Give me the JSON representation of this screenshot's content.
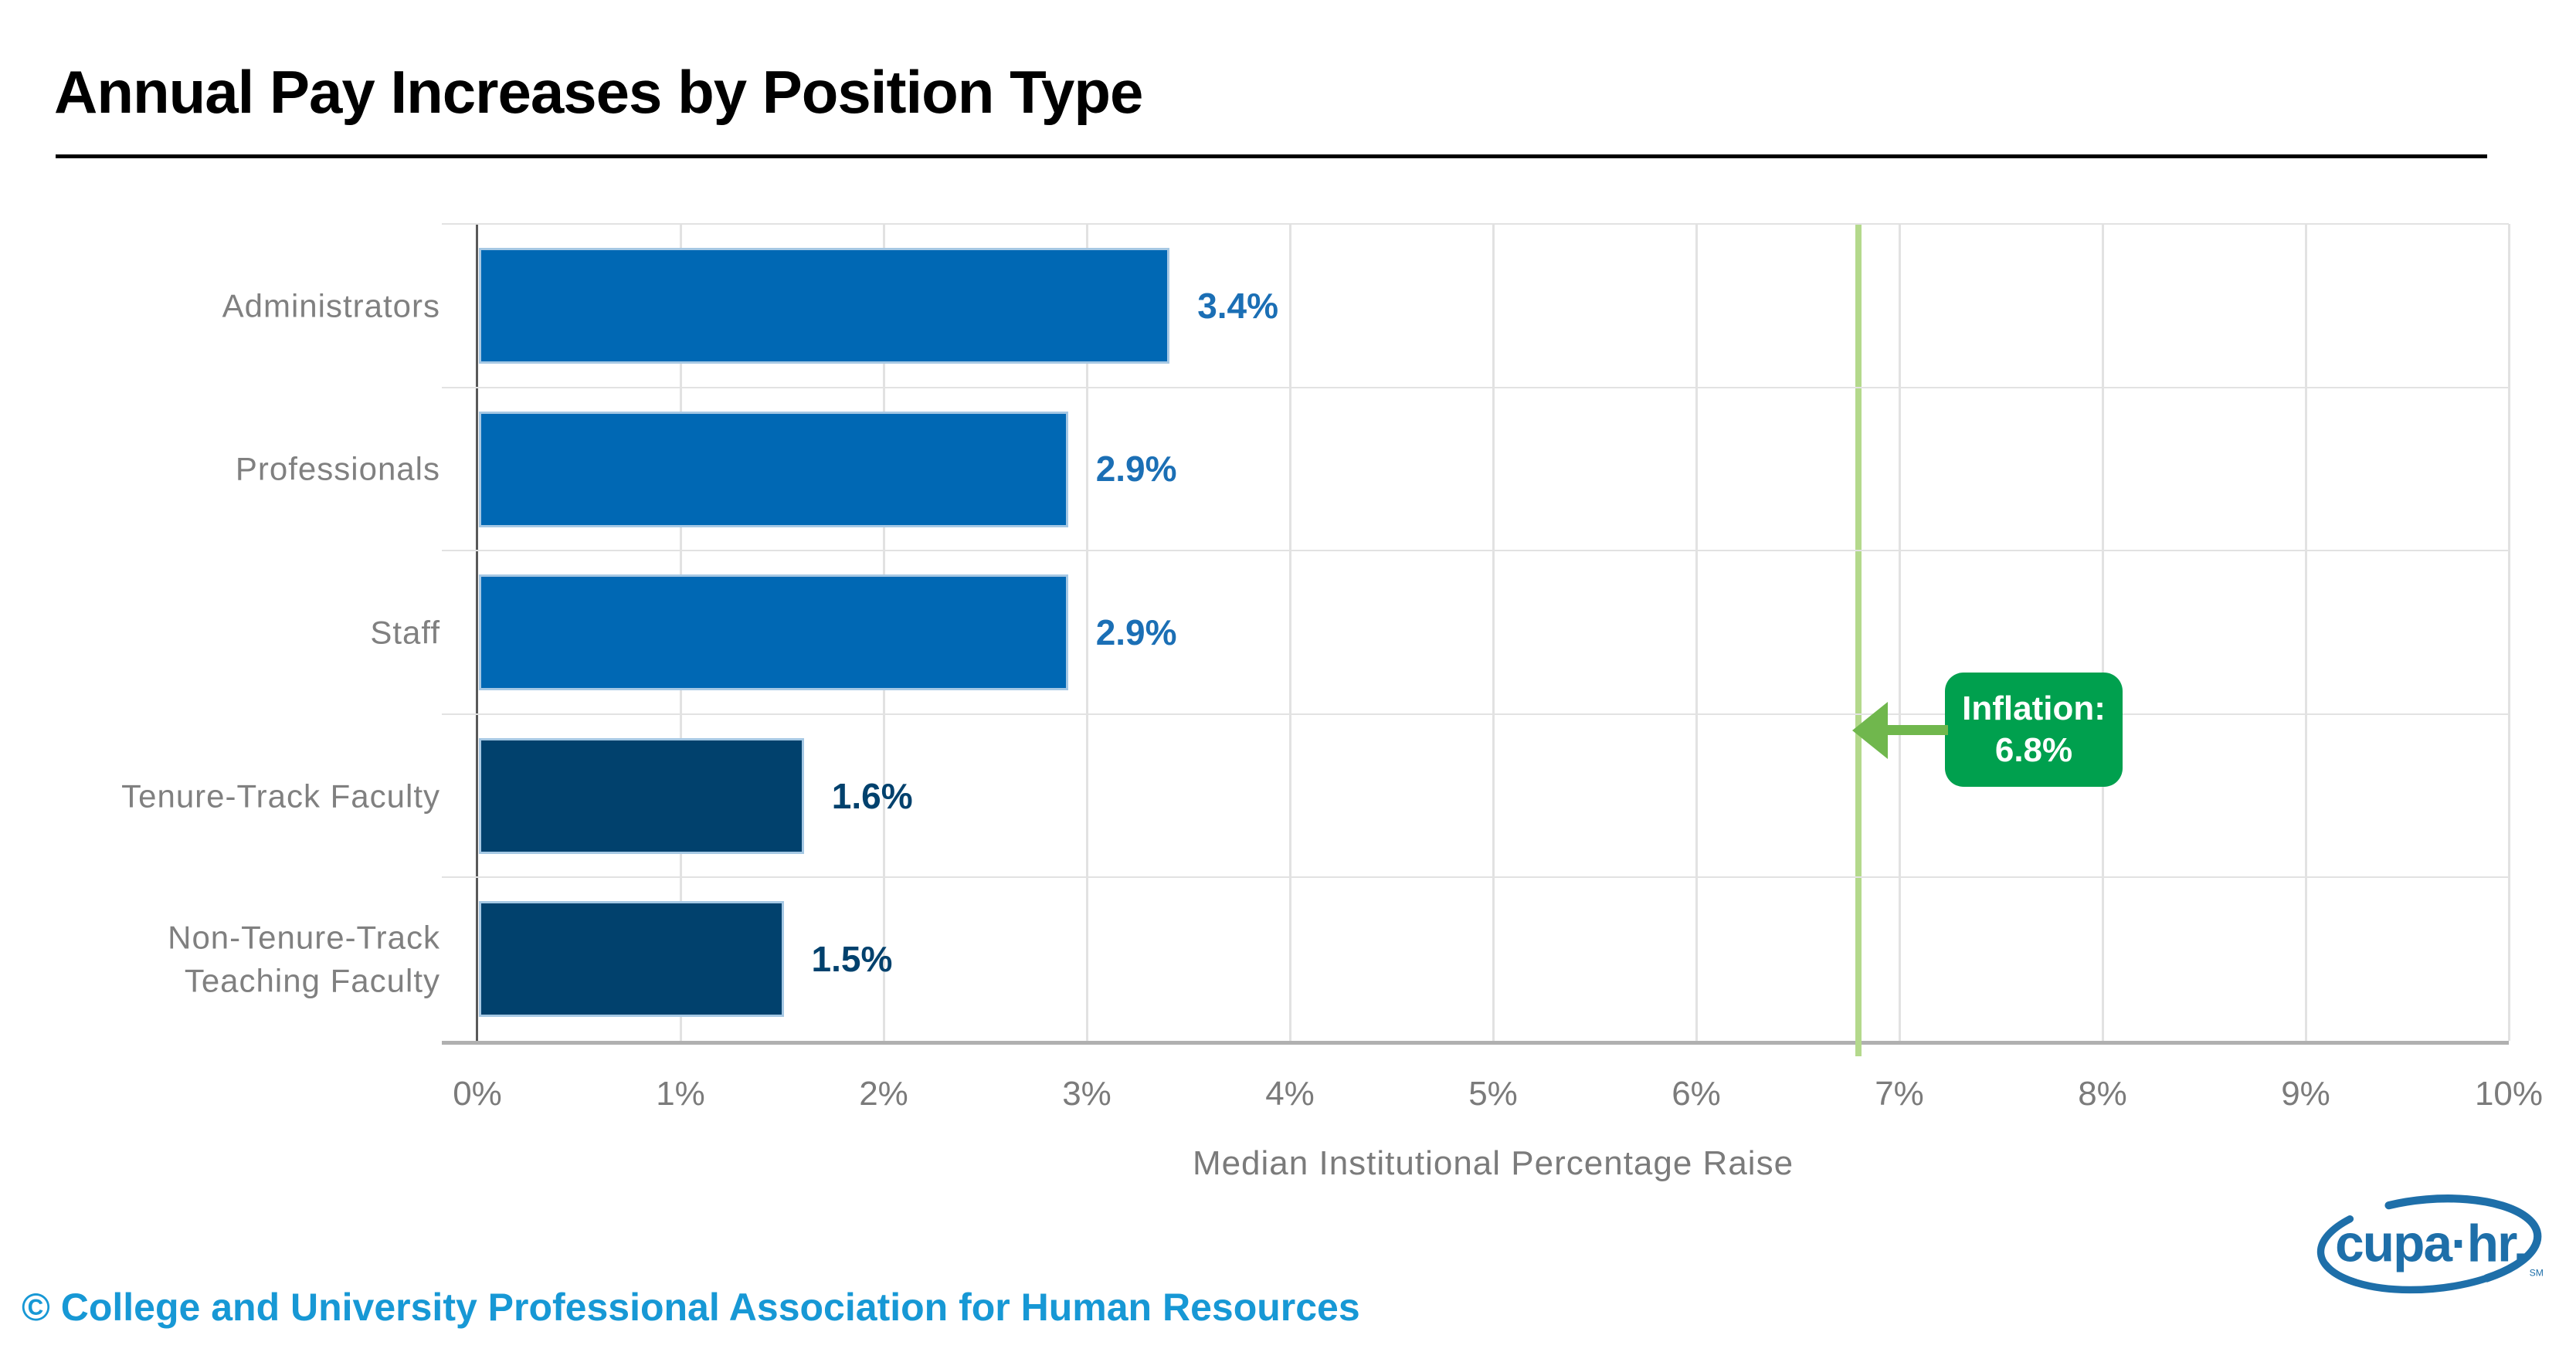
{
  "page": {
    "title": "Annual Pay Increases by Position Type",
    "footer_copyright": "© College and University Professional Association for Human Resources",
    "logo_text": "cupa·hr.",
    "logo_mark": "SM"
  },
  "theme": {
    "title_color": "#000000",
    "copyright_color": "#1798d5",
    "logo_color": "#1e6fa9",
    "grid_color": "#e2e2e2",
    "axis_color": "#595959",
    "tick_label_color": "#7b7b7b",
    "category_label_color": "#808080"
  },
  "chart_data": {
    "type": "bar",
    "orientation": "horizontal",
    "title": "Annual Pay Increases by Position Type",
    "categories": [
      "Administrators",
      "Professionals",
      "Staff",
      "Tenure-Track Faculty",
      "Non-Tenure-Track Teaching Faculty"
    ],
    "values": [
      3.4,
      2.9,
      2.9,
      1.6,
      1.5
    ],
    "value_labels": [
      "3.4%",
      "2.9%",
      "2.9%",
      "1.6%",
      "1.5%"
    ],
    "bar_colors": [
      "#0068b4",
      "#0068b4",
      "#0068b4",
      "#01416d",
      "#01416d"
    ],
    "value_label_colors": [
      "#1b6fb5",
      "#1b6fb5",
      "#1b6fb5",
      "#01416d",
      "#01416d"
    ],
    "bar_edge_color": "#a6c8e4",
    "xlabel": "Median Institutional Percentage Raise",
    "x_ticks": [
      "0%",
      "1%",
      "2%",
      "3%",
      "4%",
      "5%",
      "6%",
      "7%",
      "8%",
      "9%",
      "10%"
    ],
    "xlim": [
      0,
      10
    ],
    "grid": true,
    "legend": false,
    "annotation": {
      "name": "inflation-marker",
      "line_x": 6.8,
      "label_line1": "Inflation:",
      "label_line2": "6.8%",
      "box_color": "#00a04e",
      "arrow_color": "#70b74d",
      "line_color": "#b4d98c"
    }
  }
}
